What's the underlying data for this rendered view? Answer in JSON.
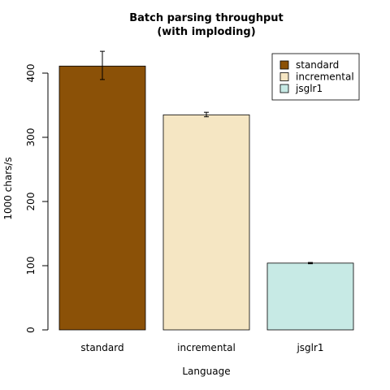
{
  "chart_data": {
    "type": "bar",
    "title": [
      "Batch parsing throughput",
      "(with imploding)"
    ],
    "xlabel": "Language",
    "ylabel": "1000 chars/s",
    "categories": [
      "standard",
      "incremental",
      "jsglr1"
    ],
    "values": [
      411,
      335,
      104
    ],
    "errors": [
      [
        390,
        434
      ],
      [
        332,
        339
      ],
      [
        103,
        105
      ]
    ],
    "colors": [
      "#8B5107",
      "#F5E6C3",
      "#C7EAE5"
    ],
    "ylim": [
      0,
      430
    ],
    "yticks": [
      0,
      100,
      200,
      300,
      400
    ],
    "legend": {
      "position": "top-right",
      "entries": [
        "standard",
        "incremental",
        "jsglr1"
      ]
    },
    "grid": false
  }
}
